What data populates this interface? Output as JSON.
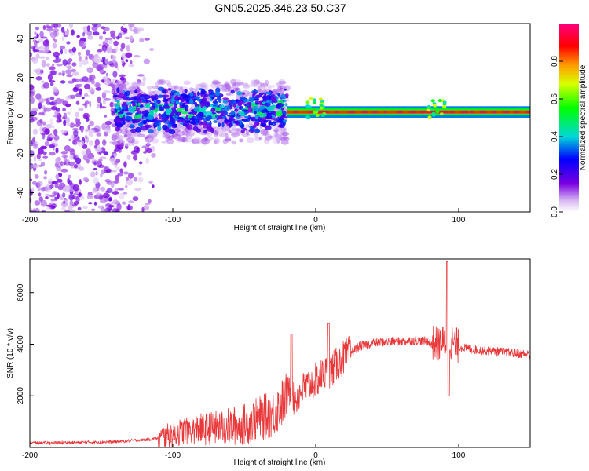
{
  "title": "GN05.2025.346.23.50.C37",
  "chart_data": [
    {
      "type": "heatmap",
      "xlabel": "Height of straight line (km)",
      "ylabel": "Frequency (Hz)",
      "xlim": [
        -200,
        150
      ],
      "ylim": [
        -50,
        48
      ],
      "xticks": [
        -200,
        -100,
        0,
        100
      ],
      "xtick_labels": [
        "-200",
        "-100",
        "0",
        "100"
      ],
      "yticks": [
        -40,
        -20,
        0,
        20,
        40
      ],
      "ytick_labels": [
        "-40",
        "-20",
        "0",
        "20",
        "40"
      ],
      "features": [
        {
          "x_range": [
            -200,
            -140
          ],
          "freq_range": [
            -50,
            48
          ],
          "amplitude": 0.15,
          "note": "scattered noise"
        },
        {
          "x_range": [
            -140,
            -20
          ],
          "freq_range": [
            -12,
            15
          ],
          "amplitude": 0.25,
          "note": "band near 0-5 Hz"
        },
        {
          "x_range": [
            -20,
            150
          ],
          "freq": 2,
          "amplitude": 0.95,
          "note": "narrow strong line"
        }
      ],
      "colorbar": {
        "label": "Normalized spectral amplitude",
        "lim": [
          0,
          1
        ],
        "ticks": [
          0.0,
          0.2,
          0.4,
          0.6,
          0.8
        ],
        "tick_labels": [
          "0.0",
          "0.2",
          "0.4",
          "0.6",
          "0.8"
        ]
      }
    },
    {
      "type": "line",
      "xlabel": "Height of straight line (km)",
      "ylabel": "SNR (10 * v/v)",
      "xlim": [
        -200,
        150
      ],
      "ylim": [
        0,
        7300
      ],
      "xticks": [
        -200,
        -100,
        0,
        100
      ],
      "xtick_labels": [
        "-200",
        "-100",
        "0",
        "100"
      ],
      "yticks": [
        2000,
        4000,
        6000
      ],
      "ytick_labels": [
        "2000",
        "4000",
        "6000"
      ],
      "color": "#e8383a",
      "series": [
        {
          "name": "SNR",
          "x": [
            -200,
            -180,
            -160,
            -140,
            -120,
            -110,
            -100,
            -90,
            -80,
            -70,
            -60,
            -50,
            -40,
            -30,
            -25,
            -20,
            -17,
            -15,
            -10,
            -5,
            0,
            5,
            10,
            15,
            20,
            30,
            40,
            50,
            60,
            70,
            80,
            85,
            90,
            92,
            95,
            100,
            110,
            120,
            130,
            140,
            150
          ],
          "y": [
            180,
            180,
            200,
            220,
            300,
            350,
            500,
            700,
            700,
            750,
            800,
            900,
            1100,
            1300,
            1600,
            2000,
            2400,
            1800,
            2200,
            2400,
            2600,
            2800,
            3000,
            3200,
            3500,
            3900,
            4050,
            4100,
            4100,
            4150,
            4100,
            4000,
            4050,
            4200,
            4100,
            3900,
            3800,
            3750,
            3700,
            3650,
            3600
          ]
        }
      ],
      "spikes": [
        {
          "x": -17,
          "y": 4400
        },
        {
          "x": 9,
          "y": 4800
        },
        {
          "x": 92,
          "y": 7200
        },
        {
          "x": 93,
          "y": 2000
        }
      ]
    }
  ]
}
